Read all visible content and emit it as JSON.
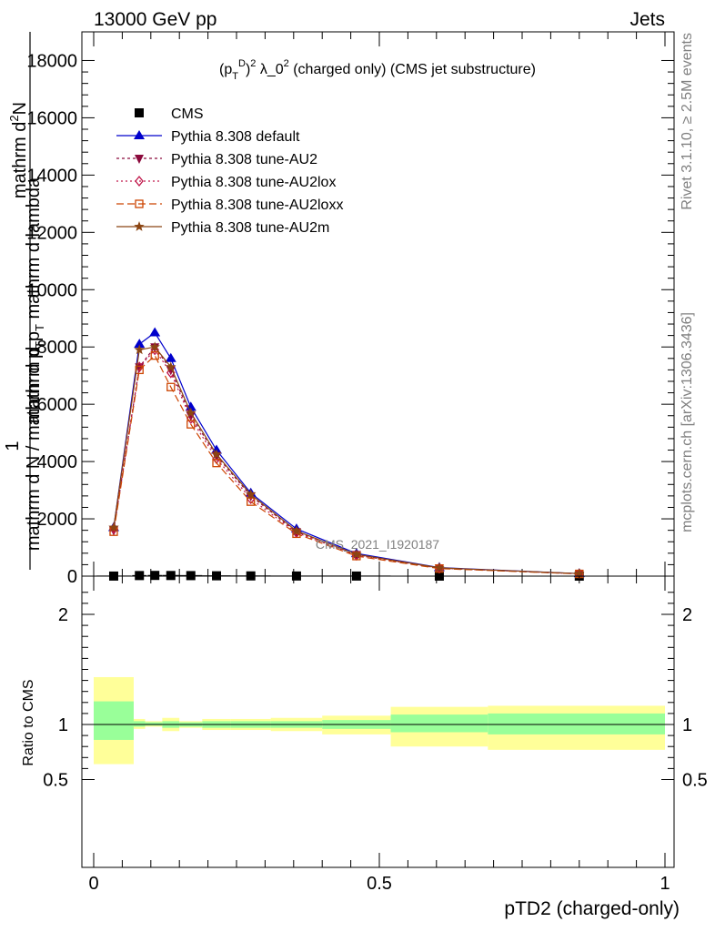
{
  "header": {
    "left": "13000 GeV pp",
    "right": "Jets"
  },
  "side_text": {
    "right_top": "Rivet 3.1.10, ≥ 2.5M events",
    "right_bottom": "mcplots.cern.ch [arXiv:1306.3436]"
  },
  "plot_title": "(p_T^D)^2 λ_0^2 (charged only) (CMS jet substructure)",
  "watermark": "CMS_2021_I1920187",
  "chart_data": [
    {
      "type": "line",
      "panel": "main",
      "ylabel": "1 / mathrm d N / mathrm d p_T mathrm d^2 N / mathrm d p_T mathrm d lambda",
      "xlabel": "pTD2 (charged-only)",
      "xlim": [
        0,
        1
      ],
      "ylim": [
        0,
        19000
      ],
      "yticks": [
        0,
        2000,
        4000,
        6000,
        8000,
        10000,
        12000,
        14000,
        16000,
        18000
      ],
      "ytick_labels": [
        "0",
        "2000",
        "4000",
        "6000",
        "8000",
        "10000",
        "12000",
        "14000",
        "16000",
        "18000"
      ],
      "x": [
        0.035,
        0.08,
        0.107,
        0.135,
        0.17,
        0.215,
        0.275,
        0.355,
        0.46,
        0.605,
        0.85
      ],
      "xerr": [
        0.03,
        0.0125,
        0.0125,
        0.015,
        0.02,
        0.025,
        0.035,
        0.045,
        0.06,
        0.085,
        0.155
      ],
      "series": [
        {
          "name": "CMS",
          "color": "#000000",
          "marker": "square",
          "dash": "none",
          "values": [
            2,
            20,
            25,
            22,
            18,
            12,
            8,
            5,
            3,
            1,
            0.5
          ]
        },
        {
          "name": "Pythia 8.308 default",
          "color": "#0000cc",
          "marker": "triangle-up",
          "dash": "solid",
          "values": [
            1700,
            8100,
            8500,
            7600,
            5900,
            4400,
            2900,
            1650,
            790,
            300,
            90
          ]
        },
        {
          "name": "Pythia 8.308 tune-AU2",
          "color": "#8b0a3c",
          "marker": "triangle-down",
          "dash": "3,3",
          "values": [
            1600,
            7300,
            8000,
            7200,
            5600,
            4200,
            2800,
            1550,
            750,
            280,
            85
          ]
        },
        {
          "name": "Pythia 8.308 tune-AU2lox",
          "color": "#c0174a",
          "marker": "diamond-open",
          "dash": "2,3",
          "values": [
            1650,
            7300,
            7900,
            7100,
            5500,
            4100,
            2700,
            1520,
            730,
            275,
            80
          ]
        },
        {
          "name": "Pythia 8.308 tune-AU2loxx",
          "color": "#cc4400",
          "marker": "square-open",
          "dash": "8,4",
          "values": [
            1550,
            7200,
            7700,
            6600,
            5300,
            3950,
            2600,
            1480,
            700,
            265,
            78
          ]
        },
        {
          "name": "Pythia 8.308 tune-AU2m",
          "color": "#8b4513",
          "marker": "star",
          "dash": "solid",
          "values": [
            1700,
            7900,
            8000,
            7300,
            5700,
            4250,
            2850,
            1580,
            760,
            290,
            88
          ]
        }
      ]
    },
    {
      "type": "area",
      "panel": "ratio",
      "ylabel": "Ratio to CMS",
      "xlabel": "pTD2 (charged-only)",
      "xlim": [
        0,
        1
      ],
      "ylim": [
        0.38,
        2.28
      ],
      "yticks": [
        0.5,
        1,
        2
      ],
      "ytick_labels": [
        "0.5",
        "1",
        "2"
      ],
      "xticks": [
        0,
        0.5,
        1
      ],
      "xtick_labels": [
        "0",
        "0.5",
        "1"
      ],
      "band_colors": {
        "inner": "#99ff99",
        "outer": "#ffff99"
      },
      "bins": [
        {
          "x0": 0.0,
          "x1": 0.07,
          "inner": [
            0.86,
            1.21
          ],
          "outer": [
            0.64,
            1.43
          ]
        },
        {
          "x0": 0.07,
          "x1": 0.09,
          "inner": [
            0.98,
            1.03
          ],
          "outer": [
            0.96,
            1.05
          ]
        },
        {
          "x0": 0.09,
          "x1": 0.12,
          "inner": [
            0.99,
            1.02
          ],
          "outer": [
            0.98,
            1.03
          ]
        },
        {
          "x0": 0.12,
          "x1": 0.15,
          "inner": [
            0.97,
            1.03
          ],
          "outer": [
            0.94,
            1.06
          ]
        },
        {
          "x0": 0.15,
          "x1": 0.19,
          "inner": [
            0.98,
            1.02
          ],
          "outer": [
            0.97,
            1.03
          ]
        },
        {
          "x0": 0.19,
          "x1": 0.24,
          "inner": [
            0.97,
            1.03
          ],
          "outer": [
            0.95,
            1.05
          ]
        },
        {
          "x0": 0.24,
          "x1": 0.31,
          "inner": [
            0.97,
            1.03
          ],
          "outer": [
            0.95,
            1.05
          ]
        },
        {
          "x0": 0.31,
          "x1": 0.4,
          "inner": [
            0.97,
            1.03
          ],
          "outer": [
            0.94,
            1.06
          ]
        },
        {
          "x0": 0.4,
          "x1": 0.52,
          "inner": [
            0.96,
            1.04
          ],
          "outer": [
            0.91,
            1.08
          ]
        },
        {
          "x0": 0.52,
          "x1": 0.69,
          "inner": [
            0.93,
            1.09
          ],
          "outer": [
            0.8,
            1.16
          ]
        },
        {
          "x0": 0.69,
          "x1": 1.0,
          "inner": [
            0.91,
            1.1
          ],
          "outer": [
            0.77,
            1.17
          ]
        }
      ]
    }
  ]
}
